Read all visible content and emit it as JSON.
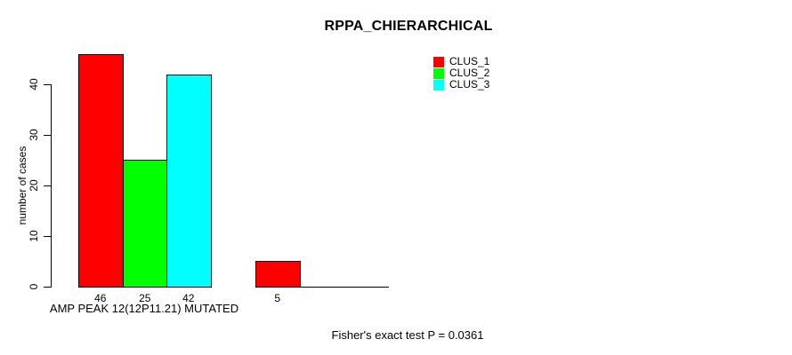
{
  "chart_data": {
    "type": "bar",
    "title": "RPPA_CHIERARCHICAL",
    "ylabel": "number of cases",
    "xlabel": "",
    "ylim": [
      0,
      46
    ],
    "yticks": [
      0,
      10,
      20,
      30,
      40
    ],
    "grid": false,
    "legend_position": "top-right",
    "series": [
      {
        "name": "CLUS_1",
        "color": "#ff0000"
      },
      {
        "name": "CLUS_2",
        "color": "#00ff00"
      },
      {
        "name": "CLUS_3",
        "color": "#00ffff"
      }
    ],
    "groups": [
      {
        "label": "AMP PEAK 12(12P11.21) MUTATED",
        "values": [
          46,
          25,
          42
        ]
      },
      {
        "label": "",
        "values": [
          5,
          0,
          0
        ]
      }
    ],
    "value_labels_shown": [
      46,
      25,
      42,
      5
    ],
    "footnote": "Fisher's exact test P = 0.0361",
    "colors": {
      "background": "#ffffff",
      "axis": "#000000",
      "text": "#000000"
    }
  }
}
